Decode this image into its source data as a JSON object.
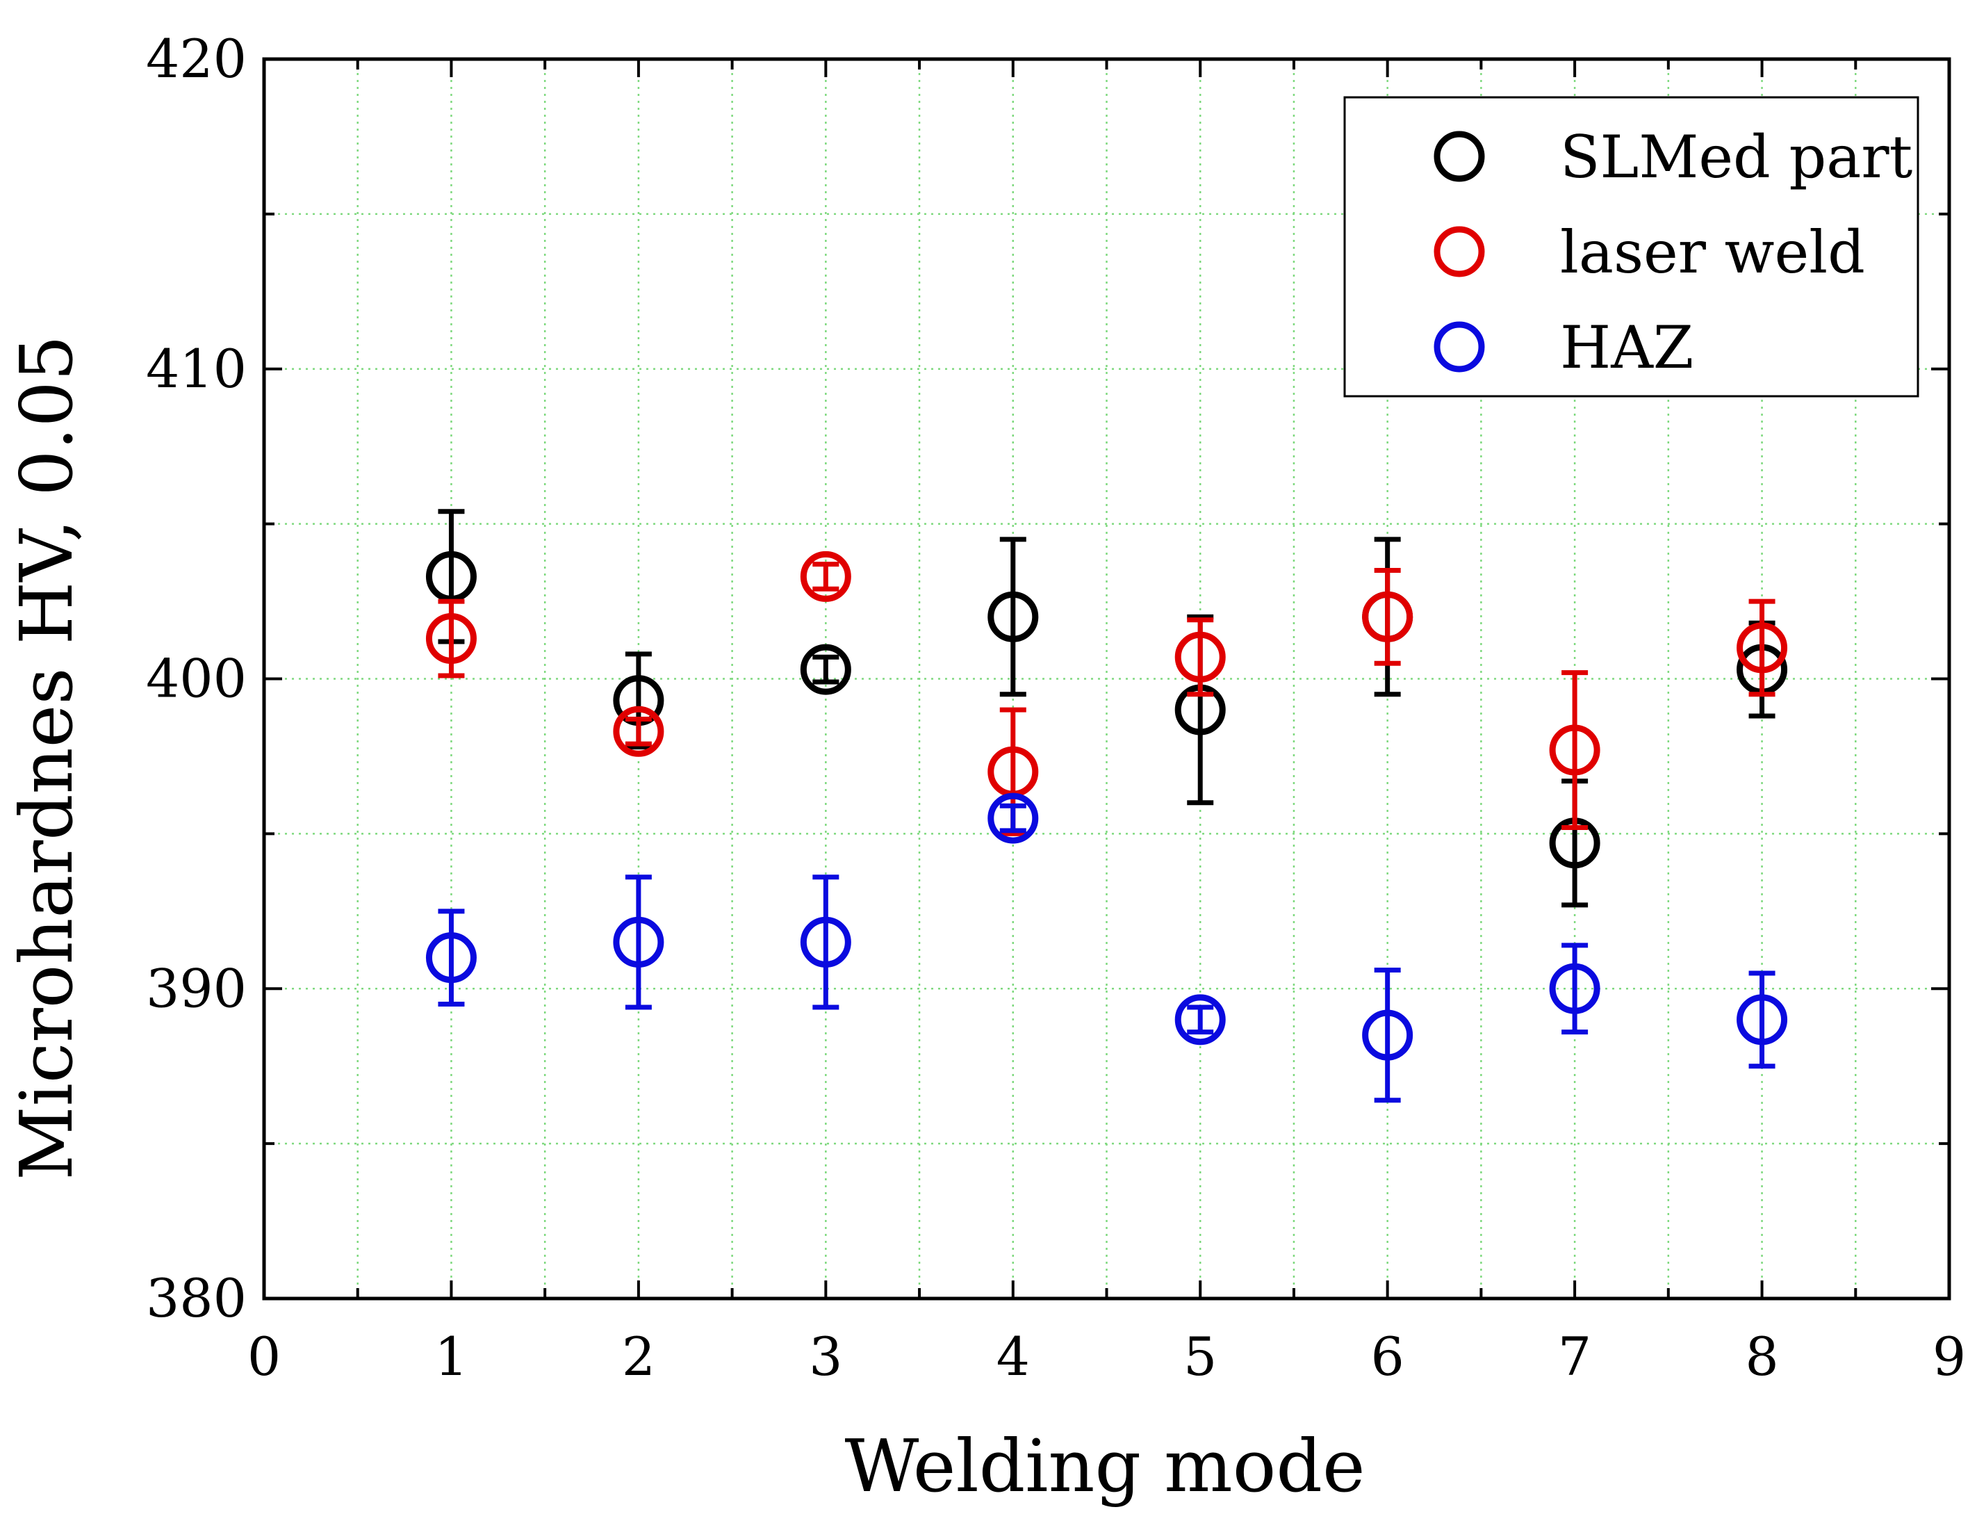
{
  "chart_data": {
    "type": "scatter",
    "title": "",
    "xlabel": "Welding mode",
    "ylabel": "Microhardnes HV, 0.05",
    "xlim": [
      0,
      9
    ],
    "ylim": [
      380,
      420
    ],
    "xticks": [
      "0",
      "1",
      "2",
      "3",
      "4",
      "5",
      "6",
      "7",
      "8",
      "9"
    ],
    "yticks": [
      "380",
      "390",
      "400",
      "410",
      "420"
    ],
    "grid": true,
    "legend_position": "top-right",
    "series": [
      {
        "name": "SLMed part",
        "color": "#000000",
        "x": [
          1,
          2,
          3,
          4,
          5,
          6,
          7,
          8
        ],
        "y": [
          403.3,
          399.3,
          400.3,
          402.0,
          399.0,
          402.0,
          394.7,
          400.3
        ],
        "err": [
          2.1,
          1.5,
          0.4,
          2.5,
          3.0,
          2.5,
          2.0,
          1.5
        ]
      },
      {
        "name": "laser weld",
        "color": "#e00000",
        "x": [
          1,
          2,
          3,
          4,
          5,
          6,
          7,
          8
        ],
        "y": [
          401.3,
          398.3,
          403.3,
          397.0,
          400.7,
          402.0,
          397.7,
          401.0
        ],
        "err": [
          1.2,
          0.4,
          0.4,
          2.0,
          1.2,
          1.5,
          2.5,
          1.5
        ]
      },
      {
        "name": "HAZ",
        "color": "#0a0adf",
        "x": [
          1,
          2,
          3,
          4,
          5,
          6,
          7,
          8
        ],
        "y": [
          391.0,
          391.5,
          391.5,
          395.5,
          389.0,
          388.5,
          390.0,
          389.0
        ],
        "err": [
          1.5,
          2.1,
          2.1,
          0.4,
          0.4,
          2.1,
          1.4,
          1.5
        ]
      }
    ]
  }
}
